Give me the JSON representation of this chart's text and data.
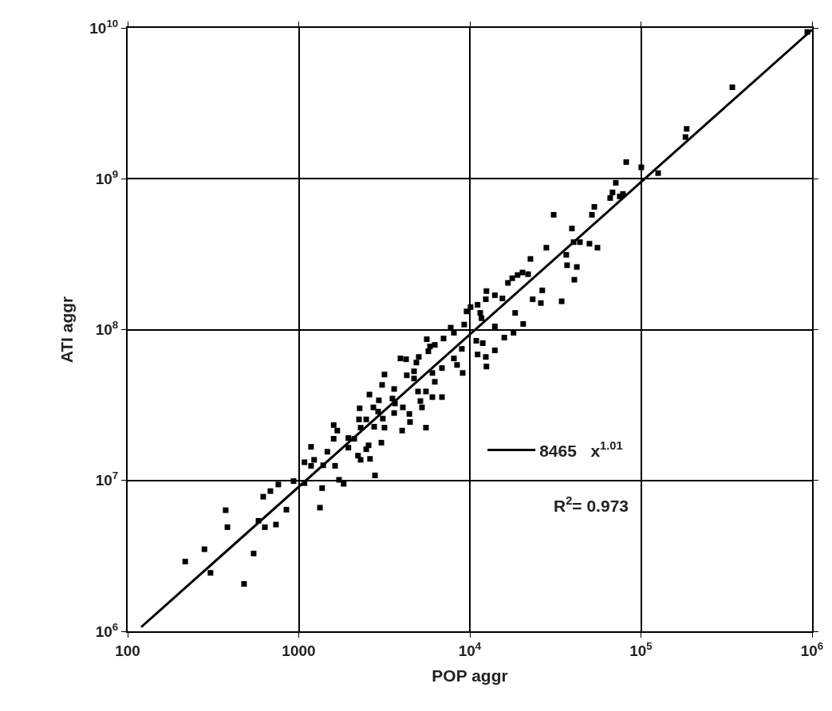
{
  "chart_data": {
    "type": "scatter",
    "xlabel": "POP aggr",
    "ylabel": "ATI aggr",
    "log": "xy",
    "grid": true,
    "marker": "square",
    "legend": "bottom right",
    "xlim": [
      100,
      1000000
    ],
    "ylim": [
      1000000,
      10000000000
    ],
    "xticks": [
      100,
      1000,
      {
        "value": 10000,
        "label": "10$^{4}$"
      },
      {
        "value": 100000,
        "label": "10$^{5}$"
      },
      {
        "value": 1000000,
        "label": "10$^{6}$"
      }
    ],
    "yticks": [
      {
        "value": 1000000,
        "label": "10$^{6}$"
      },
      {
        "value": 10000000,
        "label": "10$^{7}$"
      },
      {
        "value": 100000000,
        "label": "10$^{8}$"
      },
      {
        "value": 1000000000,
        "label": "10$^{9}$"
      },
      {
        "value": 10000000000,
        "label": "10$^{10}$"
      }
    ],
    "annotations": [
      "R$^{2}$= 0.973"
    ],
    "series": [
      {
        "color": "#000000",
        "x": [
          217,
          281,
          305,
          374,
          383,
          479,
          545,
          582,
          634,
          620,
          683,
          760,
          736,
          847,
          933,
          1080,
          1180,
          1230,
          1180,
          1330,
          1370,
          1390,
          1470,
          1600,
          1630,
          1720,
          1830,
          1950,
          1950,
          1080,
          1600,
          1680,
          2110,
          2250,
          2480,
          2300,
          2560,
          2480,
          2220,
          2300,
          2610,
          2790,
          3040,
          2760,
          2910,
          2730,
          2270,
          2590,
          2940,
          3170,
          3100,
          3530,
          3650,
          3610,
          3610,
          3070,
          3170,
          4060,
          4430,
          4470,
          4020,
          4280,
          4720,
          4720,
          3930,
          4240,
          4870,
          5030,
          4980,
          5140,
          5250,
          5540,
          6040,
          6870,
          5540,
          6040,
          6240,
          6870,
          5600,
          5850,
          5720,
          6240,
          7020,
          7730,
          8070,
          8070,
          8420,
          9080,
          8980,
          9270,
          10900,
          11100,
          12400,
          12500,
          9570,
          10100,
          11100,
          11500,
          11700,
          12400,
          12500,
          14000,
          15500,
          11900,
          14000,
          14000,
          15900,
          18000,
          18400,
          20500,
          16700,
          17700,
          19000,
          20300,
          21900,
          22600,
          23300,
          26000,
          26500,
          28000,
          34400,
          36600,
          37000,
          42200,
          40800,
          40400,
          44000,
          50000,
          55700,
          39500,
          51700,
          53400,
          66100,
          68200,
          71300,
          75200,
          78500,
          82000,
          100500,
          126000,
          185000,
          182000,
          342000,
          938000,
          30900
        ],
        "values": [
          2900000.0,
          3500000.0,
          2440000.0,
          6350000.0,
          4900000.0,
          2060000.0,
          3280000.0,
          5400000.0,
          4900000.0,
          7800000.0,
          8500000.0,
          9400000.0,
          5100000.0,
          6400000.0,
          9900000.0,
          13200000.0,
          16700000.0,
          13700000.0,
          12500000.0,
          6600000.0,
          8900000.0,
          12600000.0,
          15500000.0,
          18900000.0,
          12500000.0,
          10100000.0,
          9500000.0,
          19100000.0,
          16500000.0,
          9600000.0,
          23300000.0,
          21400000.0,
          18900000.0,
          25400000.0,
          25400000.0,
          22400000.0,
          17100000.0,
          16100000.0,
          14600000.0,
          13700000.0,
          13900000.0,
          10800000.0,
          17800000.0,
          22700000.0,
          28600000.0,
          30500000.0,
          30100000.0,
          37100000.0,
          34000000.0,
          22400000.0,
          25700000.0,
          34900000.0,
          32400000.0,
          28000000.0,
          40400000.0,
          43000000.0,
          50400000.0,
          30500000.0,
          27600000.0,
          24400000.0,
          21400000.0,
          49800000.0,
          52900000.0,
          47400000.0,
          64400000.0,
          63600000.0,
          60500000.0,
          65900000.0,
          38900000.0,
          33600000.0,
          30500000.0,
          38900000.0,
          35700000.0,
          35700000.0,
          22400000.0,
          51600000.0,
          45100000.0,
          55600000.0,
          86300000.0,
          77300000.0,
          71800000.0,
          79200000.0,
          87300000.0,
          103000000.0,
          95300000.0,
          64400000.0,
          58300000.0,
          51600000.0,
          74500000.0,
          108000000.0,
          84300000.0,
          68400000.0,
          65900000.0,
          56900000.0,
          132000000.0,
          141000000.0,
          146000000.0,
          129000000.0,
          119000000.0,
          159000000.0,
          180000000.0,
          169000000.0,
          161000000.0,
          81300000.0,
          72800000.0,
          105000000.0,
          88500000.0,
          95300000.0,
          129000000.0,
          109000000.0,
          204000000.0,
          219000000.0,
          230000000.0,
          239000000.0,
          233000000.0,
          294000000.0,
          159000000.0,
          150000000.0,
          182000000.0,
          349000000.0,
          154000000.0,
          313000000.0,
          267000000.0,
          260000000.0,
          214000000.0,
          380000000.0,
          380000000.0,
          371000000.0,
          349000000.0,
          468000000.0,
          577000000.0,
          651000000.0,
          745000000.0,
          812000000.0,
          940000000.0,
          764000000.0,
          793000000.0,
          1290000000.0,
          1190000000.0,
          1090000000.0,
          2140000000.0,
          1890000000.0,
          4040000000.0,
          9400000000.0,
          577000000.0
        ]
      },
      {
        "type": "line",
        "name": "8465   x$^{1.01}$",
        "color": "#000000",
        "marker": "none",
        "line_style": "solid",
        "x": [
          120,
          1000000
        ],
        "values": [
          1066000.0,
          9720000000.0
        ]
      }
    ]
  }
}
